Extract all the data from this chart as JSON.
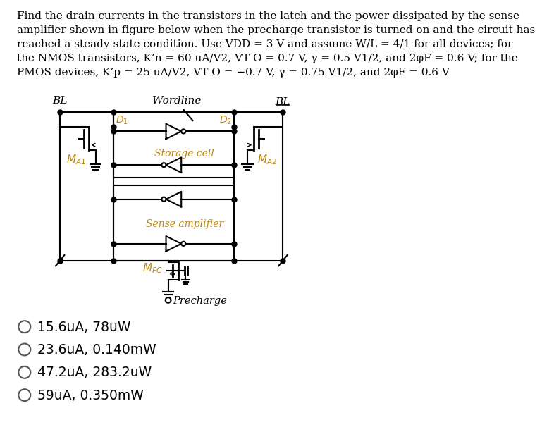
{
  "title_text": "Find the drain currents in the transistors in the latch and the power dissipated by the sense\namplifier shown in figure below when the precharge transistor is turned on and the circuit has\nreached a steady-state condition. Use VDD = 3 V and assume W/L = 4/1 for all devices; for\nthe NMOS transistors, K’n = 60 uA/V2, VT O = 0.7 V, γ = 0.5 V1/2, and 2φF = 0.6 V; for the\nPMOS devices, K’p = 25 uA/V2, VT O = −0.7 V, γ = 0.75 V1/2, and 2φF = 0.6 V",
  "options": [
    "15.6uA, 78uW",
    "23.6uA, 0.140mW",
    "47.2uA, 283.2uW",
    "59uA, 0.350mW"
  ],
  "bg_color": "#ffffff",
  "cc": "#000000",
  "lc": "#b8860b",
  "title_fontsize": 11.0,
  "option_fontsize": 13.5
}
